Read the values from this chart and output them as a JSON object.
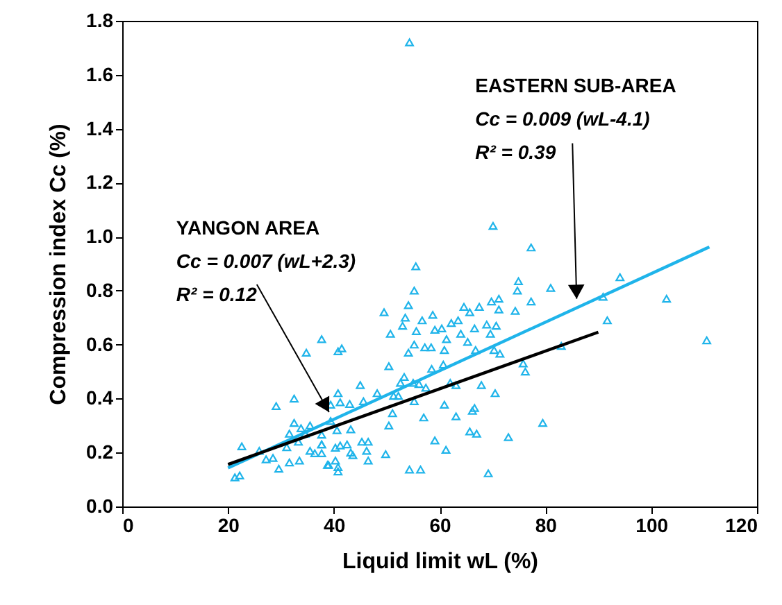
{
  "chart_data": {
    "type": "scatter",
    "xlabel": "Liquid limit wL (%)",
    "ylabel": "Compression index Cc (%)",
    "xlim": [
      0,
      120
    ],
    "xticks": [
      0,
      20,
      40,
      60,
      80,
      100,
      120
    ],
    "ylim": [
      0,
      1.8
    ],
    "yticks": [
      {
        "value": 0,
        "label": "0.0"
      },
      {
        "value": 0.2,
        "label": "0.2"
      },
      {
        "value": 0.4,
        "label": "0.4"
      },
      {
        "value": 0.6,
        "label": "0.6"
      },
      {
        "value": 0.8,
        "label": "0.8"
      },
      {
        "value": 1.0,
        "label": "1.0"
      },
      {
        "value": 1.2,
        "label": "1.2"
      },
      {
        "value": 1.4,
        "label": "1.4"
      },
      {
        "value": 1.6,
        "label": "1.6"
      },
      {
        "value": 1.8,
        "label": "1.8"
      }
    ],
    "grid": false,
    "marker": "triangle",
    "series": [
      {
        "type": "scatter",
        "color": "#1fb4ea",
        "x": [
          21.3,
          22.2,
          22.6,
          29.1,
          32.5,
          34.8,
          37.7,
          27.2,
          28.5,
          29.6,
          31.6,
          33.5,
          32.5,
          33.8,
          31.6,
          31.1,
          33.3,
          34.6,
          35.5,
          35.5,
          36.4,
          37.7,
          37.7,
          25.9,
          39.0,
          70.1,
          77.3,
          55.5,
          55.2,
          74.9,
          74.7,
          77.3,
          49.5,
          54.1,
          53.5,
          69.8,
          71.2,
          71.2,
          67.5,
          64.6,
          65.7,
          74.3,
          58.7,
          56.7,
          53.0,
          50.7,
          55.6,
          59.1,
          60.4,
          62.2,
          63.5,
          66.6,
          68.9,
          70.7,
          69.6,
          64.0,
          61.3,
          65.3,
          66.8,
          57.2,
          55.2,
          54.1,
          58.4,
          60.9,
          70.3,
          71.4,
          75.8,
          76.2,
          40.8,
          41.5,
          50.4,
          58.5,
          60.7,
          53.3,
          52.6,
          55.0,
          56.1,
          57.4,
          62.0,
          63.1,
          67.9,
          70.5,
          45.0,
          48.2,
          51.3,
          52.2,
          40.8,
          41.2,
          43.0,
          45.6,
          55.2,
          51.1,
          60.9,
          66.6,
          66.2,
          57.0,
          63.1,
          50.4,
          39.4,
          39.4,
          43.2,
          40.6,
          65.7,
          67.0,
          73.0,
          59.1,
          45.3,
          46.5,
          41.2,
          42.5,
          40.3,
          43.2,
          46.2,
          43.6,
          49.8,
          61.2,
          46.5,
          38.8,
          40.3,
          40.8,
          40.8,
          54.3,
          56.4,
          69.2,
          37.7,
          37.7,
          81.0,
          90.9,
          94.1,
          102.9,
          91.7,
          83.0,
          110.5,
          79.5,
          54.3
        ],
        "values": [
          0.108,
          0.115,
          0.223,
          0.372,
          0.4,
          0.57,
          0.62,
          0.175,
          0.18,
          0.14,
          0.163,
          0.17,
          0.31,
          0.29,
          0.27,
          0.22,
          0.24,
          0.27,
          0.3,
          0.206,
          0.197,
          0.266,
          0.23,
          0.206,
          0.154,
          1.04,
          0.96,
          0.89,
          0.8,
          0.835,
          0.8,
          0.76,
          0.72,
          0.746,
          0.7,
          0.76,
          0.77,
          0.73,
          0.74,
          0.74,
          0.72,
          0.725,
          0.71,
          0.69,
          0.67,
          0.64,
          0.65,
          0.655,
          0.66,
          0.68,
          0.69,
          0.66,
          0.674,
          0.67,
          0.64,
          0.64,
          0.62,
          0.61,
          0.58,
          0.59,
          0.6,
          0.57,
          0.59,
          0.58,
          0.58,
          0.566,
          0.53,
          0.5,
          0.575,
          0.586,
          0.52,
          0.51,
          0.526,
          0.48,
          0.458,
          0.458,
          0.454,
          0.44,
          0.458,
          0.45,
          0.45,
          0.42,
          0.45,
          0.42,
          0.41,
          0.41,
          0.42,
          0.386,
          0.38,
          0.39,
          0.39,
          0.346,
          0.377,
          0.365,
          0.355,
          0.33,
          0.334,
          0.3,
          0.377,
          0.317,
          0.286,
          0.283,
          0.278,
          0.27,
          0.257,
          0.245,
          0.24,
          0.24,
          0.226,
          0.23,
          0.218,
          0.2,
          0.206,
          0.19,
          0.194,
          0.21,
          0.17,
          0.154,
          0.17,
          0.146,
          0.13,
          0.137,
          0.137,
          0.123,
          0.23,
          0.197,
          0.81,
          0.777,
          0.85,
          0.77,
          0.69,
          0.595,
          0.616,
          0.31,
          1.72
        ]
      },
      {
        "type": "line",
        "color": "#1fb4ea",
        "marker": "none",
        "line_style": "solid",
        "x": [
          20,
          111
        ],
        "values": [
          0.143,
          0.962
        ]
      },
      {
        "type": "line",
        "color": "#000000",
        "marker": "none",
        "line_style": "solid",
        "x": [
          20,
          90
        ],
        "values": [
          0.156,
          0.646
        ]
      }
    ],
    "annotations": [
      "YANGON AREA",
      "Cc = 0.007 (wL+2.3)",
      {
        "text": "R² = 0.12",
        "x": 39.1,
        "y": 0.35
      },
      "EASTERN SUB-AREA",
      "Cc = 0.009 (wL-4.1)",
      {
        "text": "R² = 0.39",
        "x": 85.9,
        "y": 0.77
      }
    ]
  }
}
